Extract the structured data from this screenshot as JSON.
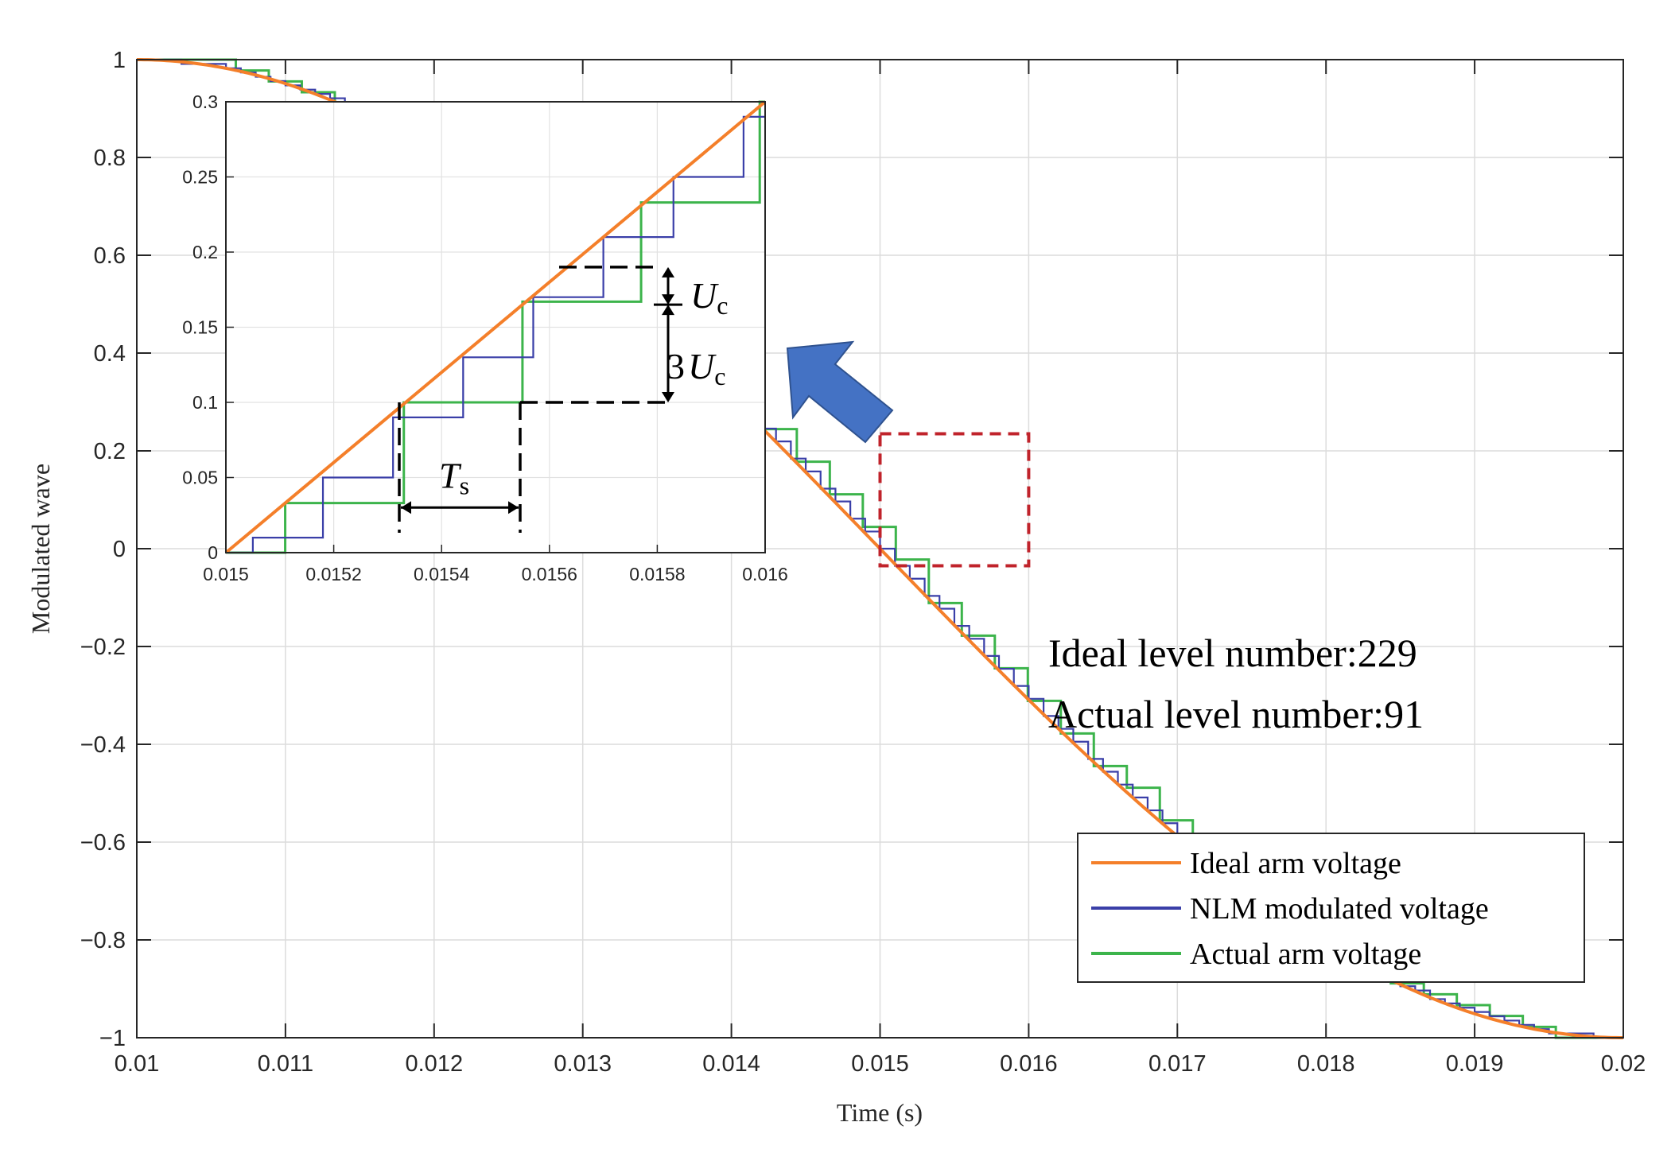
{
  "colors": {
    "ideal": "#F47F2A",
    "nlm": "#3A3FA8",
    "actual": "#3CB44B",
    "zoom_box": "#C0232B",
    "arrow": "#4472C4"
  },
  "chart_data": [
    {
      "type": "line",
      "xlabel": "Time (s)",
      "ylabel": "Modulated wave",
      "xlim": [
        0.01,
        0.02
      ],
      "ylim": [
        -1,
        1
      ],
      "x_ticks": [
        0.01,
        0.011,
        0.012,
        0.013,
        0.014,
        0.015,
        0.016,
        0.017,
        0.018,
        0.019,
        0.02
      ],
      "x_tick_labels": [
        "0.01",
        "0.011",
        "0.012",
        "0.013",
        "0.014",
        "0.015",
        "0.016",
        "0.017",
        "0.018",
        "0.019",
        "0.02"
      ],
      "y_ticks": [
        -1,
        -0.8,
        -0.6,
        -0.4,
        -0.2,
        0,
        0.2,
        0.4,
        0.6,
        0.8,
        1
      ],
      "y_tick_labels": [
        "−1",
        "−0.8",
        "−0.6",
        "−0.4",
        "−0.2",
        "0",
        "0.2",
        "0.4",
        "0.6",
        "0.8",
        "1"
      ],
      "grid": true,
      "legend_position": "bottom-right",
      "series": [
        {
          "name": "Ideal arm voltage",
          "function": "-cos(2*pi*50*t)",
          "x_range": [
            0.01,
            0.02
          ]
        },
        {
          "name": "NLM modulated voltage",
          "step_time": 0.0001,
          "level_step": 0.0087719,
          "x_range": [
            0.01,
            0.02
          ]
        },
        {
          "name": "Actual arm voltage",
          "step_time": 0.000222,
          "level_step": 0.0222222,
          "x_range": [
            0.01,
            0.02
          ]
        }
      ],
      "zoom_region": {
        "x": [
          0.015,
          0.016
        ],
        "y": [
          -0.035,
          0.235
        ]
      },
      "annotations": [
        "Ideal level number:229",
        "Actual level number:91"
      ]
    },
    {
      "type": "line",
      "role": "inset",
      "xlim": [
        0.015,
        0.016
      ],
      "ylim": [
        0,
        0.3
      ],
      "x_ticks": [
        0.015,
        0.0152,
        0.0154,
        0.0156,
        0.0158,
        0.016
      ],
      "x_tick_labels": [
        "0.015",
        "0.0152",
        "0.0154",
        "0.0156",
        "0.0158",
        "0.016"
      ],
      "y_ticks": [
        0,
        0.05,
        0.1,
        0.15,
        0.2,
        0.25,
        0.3
      ],
      "y_tick_labels": [
        "0",
        "0.05",
        "0.1",
        "0.15",
        "0.2",
        "0.25",
        "0.3"
      ],
      "grid": true,
      "series": [
        {
          "name": "Ideal arm voltage",
          "x": [
            0.015,
            0.016
          ],
          "y": [
            0,
            0.3
          ]
        },
        {
          "name": "NLM modulated voltage",
          "x": [
            0.015,
            0.01505,
            0.01505,
            0.01518,
            0.01518,
            0.01531,
            0.01531,
            0.01544,
            0.01544,
            0.01557,
            0.01557,
            0.0157,
            0.0157,
            0.01583,
            0.01583,
            0.01596,
            0.01596,
            0.016
          ],
          "y": [
            0,
            0,
            0.01,
            0.01,
            0.05,
            0.05,
            0.09,
            0.09,
            0.13,
            0.13,
            0.17,
            0.17,
            0.21,
            0.21,
            0.25,
            0.25,
            0.29,
            0.29
          ]
        },
        {
          "name": "Actual arm voltage",
          "x": [
            0.015,
            0.01511,
            0.01511,
            0.01533,
            0.01533,
            0.01555,
            0.01555,
            0.01577,
            0.01577,
            0.01599,
            0.01599,
            0.016
          ],
          "y": [
            0,
            0,
            0.033,
            0.033,
            0.1,
            0.1,
            0.167,
            0.167,
            0.233,
            0.233,
            0.3,
            0.3
          ]
        }
      ],
      "annotations": {
        "uc_symbol": "U",
        "uc_subscript": "c",
        "three_uc_prefix": "3",
        "ts_symbol": "T",
        "ts_subscript": "s"
      }
    }
  ]
}
